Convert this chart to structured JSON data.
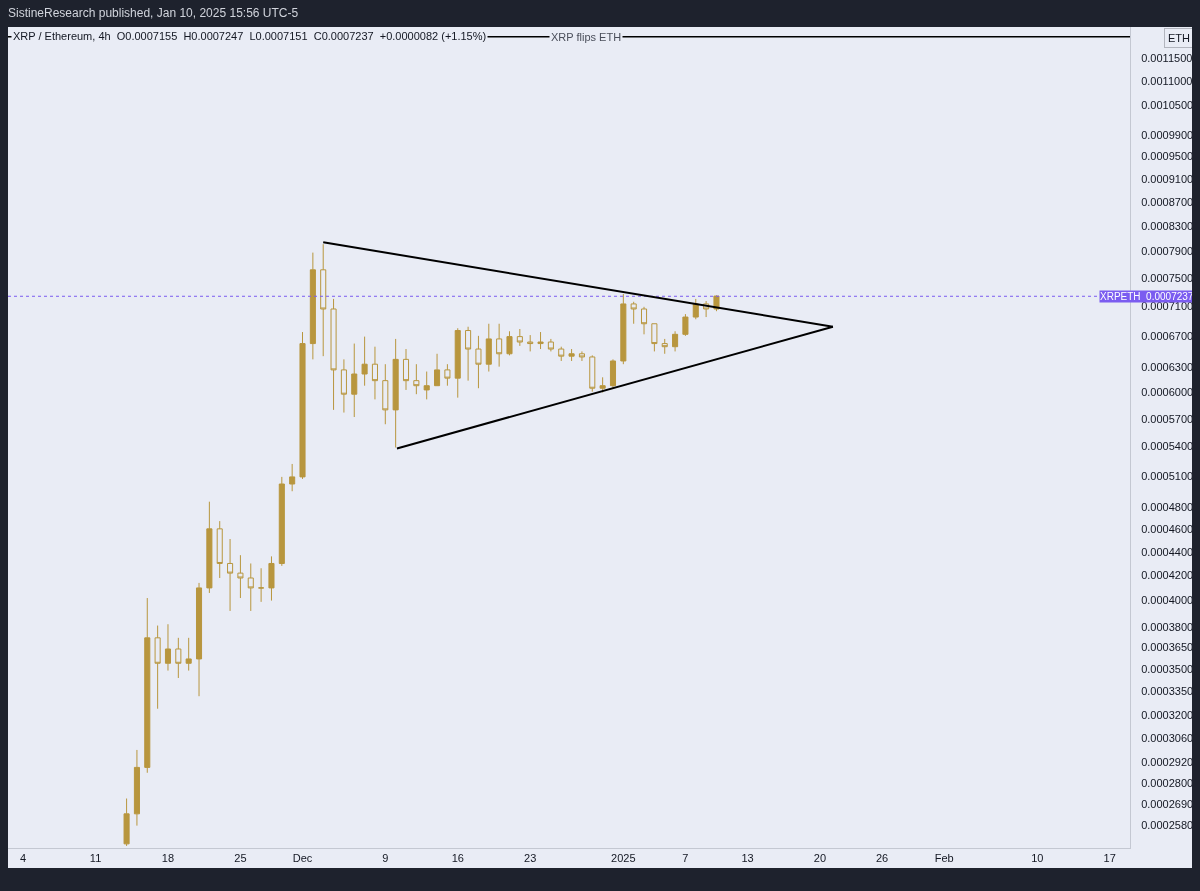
{
  "chart_data": {
    "type": "candlestick",
    "title": "SistineResearch published, Jan 10, 2025 15:56 UTC-5",
    "subtitle": "XRP / Ethereum, 4h  O0.0007155  H0.0007247  L0.0007151  C0.0007237  +0.0000082 (+1.15%)",
    "ylabel": "ETH",
    "log": true,
    "color": "#b8963e",
    "x": [
      "2024-11-14",
      "2024-11-15",
      "2024-11-16",
      "2024-11-17",
      "2024-11-18",
      "2024-11-19",
      "2024-11-20",
      "2024-11-21",
      "2024-11-22",
      "2024-11-23",
      "2024-11-24",
      "2024-11-25",
      "2024-11-26",
      "2024-11-27",
      "2024-11-28",
      "2024-11-29",
      "2024-11-30",
      "2024-12-01",
      "2024-12-02",
      "2024-12-03",
      "2024-12-04",
      "2024-12-05",
      "2024-12-06",
      "2024-12-07",
      "2024-12-08",
      "2024-12-09",
      "2024-12-10",
      "2024-12-11",
      "2024-12-12",
      "2024-12-13",
      "2024-12-14",
      "2024-12-15",
      "2024-12-16",
      "2024-12-17",
      "2024-12-18",
      "2024-12-19",
      "2024-12-20",
      "2024-12-21",
      "2024-12-22",
      "2024-12-23",
      "2024-12-24",
      "2024-12-25",
      "2024-12-26",
      "2024-12-27",
      "2024-12-28",
      "2024-12-29",
      "2024-12-30",
      "2024-12-31",
      "2025-01-01",
      "2025-01-02",
      "2025-01-03",
      "2025-01-04",
      "2025-01-05",
      "2025-01-06",
      "2025-01-07",
      "2025-01-08",
      "2025-01-09",
      "2025-01-10"
    ],
    "ohlc": [
      [
        0.000249,
        0.000272,
        0.000248,
        0.000264
      ],
      [
        0.000264,
        0.000299,
        0.000258,
        0.000289
      ],
      [
        0.000289,
        0.000402,
        0.000286,
        0.000372
      ],
      [
        0.000372,
        0.000381,
        0.000324,
        0.000354
      ],
      [
        0.000354,
        0.000382,
        0.000349,
        0.000364
      ],
      [
        0.000364,
        0.000372,
        0.000344,
        0.000354
      ],
      [
        0.000354,
        0.000372,
        0.000349,
        0.000357
      ],
      [
        0.000357,
        0.000414,
        0.000332,
        0.00041
      ],
      [
        0.00041,
        0.000485,
        0.000406,
        0.00046
      ],
      [
        0.00046,
        0.000467,
        0.000418,
        0.00043
      ],
      [
        0.00043,
        0.000451,
        0.000392,
        0.000422
      ],
      [
        0.000422,
        0.000437,
        0.000402,
        0.000418
      ],
      [
        0.000418,
        0.00043,
        0.000392,
        0.00041
      ],
      [
        0.00041,
        0.000426,
        0.000399,
        0.00041
      ],
      [
        0.00041,
        0.000436,
        0.0004,
        0.00043
      ],
      [
        0.00043,
        0.000509,
        0.000428,
        0.000502
      ],
      [
        0.000502,
        0.000522,
        0.000495,
        0.000509
      ],
      [
        0.000509,
        0.000675,
        0.000507,
        0.00066
      ],
      [
        0.00066,
        0.000788,
        0.00064,
        0.000762
      ],
      [
        0.000762,
        0.000801,
        0.000644,
        0.000706
      ],
      [
        0.000706,
        0.00072,
        0.00058,
        0.000627
      ],
      [
        0.000627,
        0.00064,
        0.000577,
        0.000598
      ],
      [
        0.000598,
        0.00066,
        0.000572,
        0.000622
      ],
      [
        0.000622,
        0.000669,
        0.000608,
        0.000634
      ],
      [
        0.000634,
        0.000656,
        0.000592,
        0.000614
      ],
      [
        0.000614,
        0.000634,
        0.000564,
        0.00058
      ],
      [
        0.00058,
        0.000666,
        0.000539,
        0.00064
      ],
      [
        0.00064,
        0.000653,
        0.000603,
        0.000614
      ],
      [
        0.000614,
        0.000634,
        0.000598,
        0.000608
      ],
      [
        0.000603,
        0.000625,
        0.000592,
        0.000608
      ],
      [
        0.000608,
        0.000647,
        0.000608,
        0.000627
      ],
      [
        0.000627,
        0.000634,
        0.000608,
        0.000617
      ],
      [
        0.000617,
        0.00068,
        0.000594,
        0.000677
      ],
      [
        0.000677,
        0.000682,
        0.000614,
        0.000653
      ],
      [
        0.000653,
        0.00067,
        0.000605,
        0.000634
      ],
      [
        0.000634,
        0.000686,
        0.000625,
        0.000666
      ],
      [
        0.000666,
        0.000686,
        0.000631,
        0.000647
      ],
      [
        0.000647,
        0.000676,
        0.000645,
        0.000669
      ],
      [
        0.000669,
        0.000679,
        0.000657,
        0.000662
      ],
      [
        0.000662,
        0.000671,
        0.00065,
        0.00066
      ],
      [
        0.00066,
        0.000675,
        0.000653,
        0.000662
      ],
      [
        0.000662,
        0.000666,
        0.00065,
        0.000653
      ],
      [
        0.000653,
        0.000656,
        0.000638,
        0.000644
      ],
      [
        0.000644,
        0.000653,
        0.000638,
        0.000647
      ],
      [
        0.000647,
        0.00065,
        0.000638,
        0.000643
      ],
      [
        0.000643,
        0.000645,
        0.000601,
        0.000605
      ],
      [
        0.000605,
        0.000618,
        0.0006,
        0.000608
      ],
      [
        0.000608,
        0.00064,
        0.000605,
        0.000638
      ],
      [
        0.000638,
        0.000727,
        0.000634,
        0.000713
      ],
      [
        0.000713,
        0.000716,
        0.000686,
        0.000706
      ],
      [
        0.000706,
        0.000709,
        0.000672,
        0.000686
      ],
      [
        0.000686,
        0.000686,
        0.00065,
        0.00066
      ],
      [
        0.00066,
        0.000666,
        0.000647,
        0.000656
      ],
      [
        0.000656,
        0.000676,
        0.00065,
        0.000672
      ],
      [
        0.000672,
        0.000699,
        0.00067,
        0.000695
      ],
      [
        0.000695,
        0.00072,
        0.000692,
        0.000713
      ],
      [
        0.000713,
        0.000717,
        0.000695,
        0.000706
      ],
      [
        0.000706,
        0.000725,
        0.000703,
        0.000724
      ]
    ],
    "series": [
      {
        "type": "line",
        "color": "#000000",
        "x": [
          "2024-12-03",
          "2025-01-21T06:00"
        ],
        "values": [
          0.000804,
          0.000682
        ]
      },
      {
        "type": "line",
        "color": "#000000",
        "x": [
          "2024-12-10T03:00",
          "2025-01-21T06:00"
        ],
        "values": [
          0.000538,
          0.000682
        ]
      }
    ],
    "ref_lines": [
      {
        "axis": "y",
        "value": 0.0007237,
        "label": "XRPETH  0.0007237",
        "color": "#7b5cf0",
        "line_style": "dotted"
      },
      {
        "axis": "y",
        "value": 0.0012,
        "label": "XRP flips ETH",
        "color": "#000000",
        "line_style": "solid"
      }
    ],
    "xlim": [
      "2024-11-02T13:00",
      "2025-02-18T23:00"
    ],
    "xticks": [
      {
        "value": "2024-11-04",
        "label": "4"
      },
      {
        "value": "2024-11-11",
        "label": "11"
      },
      {
        "value": "2024-11-18",
        "label": "18"
      },
      {
        "value": "2024-11-25",
        "label": "25"
      },
      {
        "value": "2024-12-01",
        "label": "Dec"
      },
      {
        "value": "2024-12-09",
        "label": "9"
      },
      {
        "value": "2024-12-16",
        "label": "16"
      },
      {
        "value": "2024-12-23",
        "label": "23"
      },
      {
        "value": "2025-01-01",
        "label": "2025"
      },
      {
        "value": "2025-01-07",
        "label": "7"
      },
      {
        "value": "2025-01-13",
        "label": "13"
      },
      {
        "value": "2025-01-20",
        "label": "20"
      },
      {
        "value": "2025-01-26",
        "label": "26"
      },
      {
        "value": "2025-02-01",
        "label": "Feb"
      },
      {
        "value": "2025-02-10",
        "label": "10"
      },
      {
        "value": "2025-02-17",
        "label": "17"
      }
    ],
    "ylim": [
      0.000247,
      0.001223
    ],
    "yticks": [
      {
        "value": 0.00115,
        "label": "0.0011500"
      },
      {
        "value": 0.0011,
        "label": "0.0011000"
      },
      {
        "value": 0.00105,
        "label": "0.0010500"
      },
      {
        "value": 0.00099,
        "label": "0.0009900"
      },
      {
        "value": 0.00095,
        "label": "0.0009500"
      },
      {
        "value": 0.00091,
        "label": "0.0009100"
      },
      {
        "value": 0.00087,
        "label": "0.0008700"
      },
      {
        "value": 0.00083,
        "label": "0.0008300"
      },
      {
        "value": 0.00079,
        "label": "0.0007900"
      },
      {
        "value": 0.00075,
        "label": "0.0007500"
      },
      {
        "value": 0.00071,
        "label": "0.0007100"
      },
      {
        "value": 0.00067,
        "label": "0.0006700"
      },
      {
        "value": 0.00063,
        "label": "0.0006300"
      },
      {
        "value": 0.0006,
        "label": "0.0006000"
      },
      {
        "value": 0.00057,
        "label": "0.0005700"
      },
      {
        "value": 0.00054,
        "label": "0.0005400"
      },
      {
        "value": 0.00051,
        "label": "0.0005100"
      },
      {
        "value": 0.00048,
        "label": "0.0004800"
      },
      {
        "value": 0.00046,
        "label": "0.0004600"
      },
      {
        "value": 0.00044,
        "label": "0.0004400"
      },
      {
        "value": 0.00042,
        "label": "0.0004200"
      },
      {
        "value": 0.0004,
        "label": "0.0004000"
      },
      {
        "value": 0.00038,
        "label": "0.0003800"
      },
      {
        "value": 0.000365,
        "label": "0.0003650"
      },
      {
        "value": 0.00035,
        "label": "0.0003500"
      },
      {
        "value": 0.000335,
        "label": "0.0003350"
      },
      {
        "value": 0.00032,
        "label": "0.0003200"
      },
      {
        "value": 0.000306,
        "label": "0.0003060"
      },
      {
        "value": 0.000292,
        "label": "0.0002920"
      },
      {
        "value": 0.00028,
        "label": "0.0002800"
      },
      {
        "value": 0.000269,
        "label": "0.0002690"
      },
      {
        "value": 0.000258,
        "label": "0.0002580"
      }
    ]
  }
}
